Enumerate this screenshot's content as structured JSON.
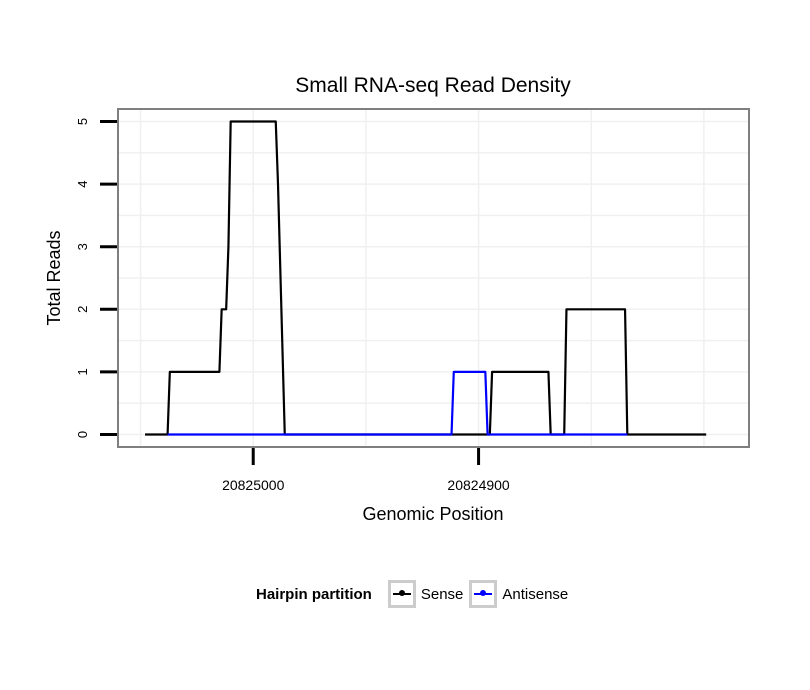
{
  "chart_data": {
    "type": "line",
    "title": "Small RNA-seq Read Density",
    "xlabel": "Genomic Position",
    "ylabel": "Total Reads",
    "x_reversed": true,
    "xlim": [
      20825060,
      20824780
    ],
    "ylim": [
      -0.2,
      5.2
    ],
    "x_ticks": [
      20825000,
      20824900
    ],
    "x_tick_labels": [
      "20825000",
      "20824900"
    ],
    "y_ticks": [
      0,
      1,
      2,
      3,
      4,
      5
    ],
    "y_tick_labels": [
      "0",
      "1",
      "2",
      "3",
      "4",
      "5"
    ],
    "grid": true,
    "legend": {
      "title": "Hairpin partition",
      "position": "bottom"
    },
    "series": [
      {
        "name": "Sense",
        "color": "#000000",
        "points": [
          [
            20825048,
            0
          ],
          [
            20825038,
            0
          ],
          [
            20825037,
            1
          ],
          [
            20825015,
            1
          ],
          [
            20825014,
            2
          ],
          [
            20825012,
            2
          ],
          [
            20825011,
            3
          ],
          [
            20825010,
            5
          ],
          [
            20824990,
            5
          ],
          [
            20824989,
            4
          ],
          [
            20824986,
            0
          ],
          [
            20824895,
            0
          ],
          [
            20824894,
            1
          ],
          [
            20824869,
            1
          ],
          [
            20824868,
            0
          ],
          [
            20824862,
            0
          ],
          [
            20824861,
            2
          ],
          [
            20824835,
            2
          ],
          [
            20824834,
            0
          ],
          [
            20824799,
            0
          ]
        ]
      },
      {
        "name": "Antisense",
        "color": "#0000ff",
        "points": [
          [
            20825038,
            0
          ],
          [
            20824912,
            0
          ],
          [
            20824911,
            1
          ],
          [
            20824897,
            1
          ],
          [
            20824896,
            0
          ],
          [
            20824865,
            0
          ],
          [
            20824835,
            0
          ],
          [
            20824834,
            0
          ]
        ]
      }
    ]
  }
}
